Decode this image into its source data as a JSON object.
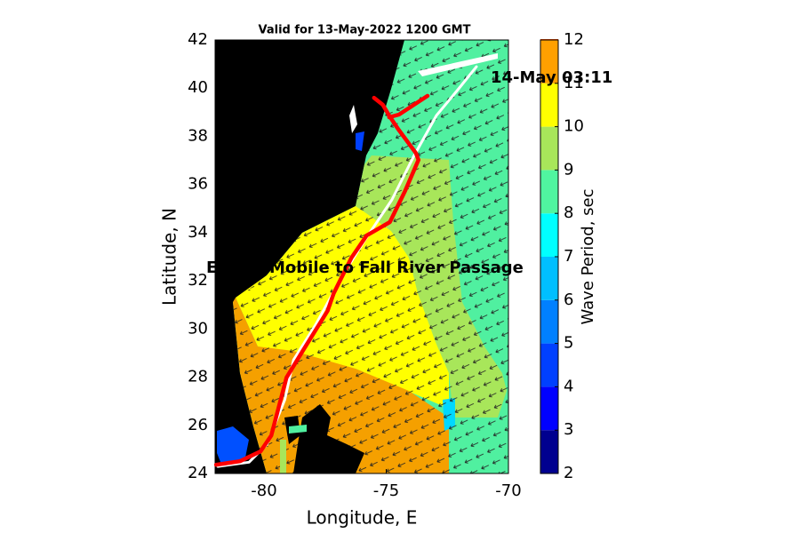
{
  "chart_data": {
    "type": "map",
    "title": "Valid for 13-May-2022 1200 GMT",
    "x_label": "Longitude, E",
    "y_label": "Latitude, N",
    "xlim": [
      -82,
      -70
    ],
    "xticks": [
      -80,
      -75,
      -70
    ],
    "ylim": [
      24,
      42
    ],
    "yticks": [
      24,
      26,
      28,
      30,
      32,
      34,
      36,
      38,
      40,
      42
    ],
    "colorbar": {
      "label": "Wave Period, sec",
      "lim": [
        2,
        12
      ],
      "ticks": [
        2,
        3,
        4,
        5,
        6,
        7,
        8,
        9,
        10,
        11,
        12
      ],
      "colors": [
        "#00008f",
        "#0000ff",
        "#0040ff",
        "#0080ff",
        "#00bfff",
        "#00ffff",
        "#50f5a0",
        "#a8e65a",
        "#ffff00",
        "#ffa000",
        "#ff5000"
      ]
    },
    "series": [
      {
        "color": "#ffffff",
        "x": [
          -81.89,
          -80.61,
          -79.88,
          -79.15,
          -78.79,
          -77.88,
          -76.78,
          -75.87,
          -74.77,
          -73.86,
          -72.95,
          -72.04,
          -71.31
        ],
        "y": [
          24.29,
          24.47,
          25.21,
          27.06,
          28.72,
          30.19,
          32.22,
          33.7,
          35.36,
          37.2,
          38.86,
          39.97,
          40.89
        ]
      },
      {
        "color": "#ff0000",
        "x": [
          -81.96,
          -80.98,
          -80.14,
          -79.7,
          -79.08,
          -78.42,
          -77.4,
          -77.15,
          -76.42,
          -75.8,
          -74.85,
          -74.23,
          -73.68,
          -73.79,
          -74.52,
          -74.88,
          -75.14,
          -75.5,
          null,
          -74.88,
          -74.48,
          -73.31
        ],
        "y": [
          24.36,
          24.51,
          24.92,
          25.58,
          27.98,
          29.08,
          30.75,
          31.48,
          32.96,
          33.88,
          34.44,
          35.73,
          37.02,
          37.31,
          38.31,
          38.86,
          39.31,
          39.6,
          null,
          38.79,
          38.9,
          39.68
        ]
      }
    ],
    "annotations": [
      "14-May 03:11",
      "Escort-Mobile to Fall River Passage"
    ]
  }
}
